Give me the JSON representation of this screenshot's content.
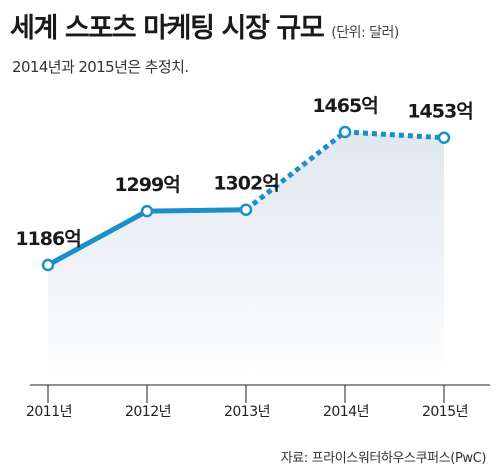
{
  "title": "세계 스포츠 마케팅 시장 규모",
  "unit": "(단위: 달러)",
  "subtitle": "2014년과 2015년은 추정치.",
  "source": "자료: 프라이스워터하우스쿠퍼스(PwC)",
  "colors": {
    "line": "#1b8fc7",
    "area_top": "#dfe7ef",
    "area_bottom": "#ffffff",
    "marker_fill": "#ffffff",
    "axis": "#222222"
  },
  "chart_data": {
    "type": "line",
    "title": "세계 스포츠 마케팅 시장 규모",
    "subtitle": "2014년과 2015년은 추정치.",
    "unit": "(단위: 달러)",
    "xlabel": "",
    "ylabel": "",
    "categories": [
      "2011년",
      "2012년",
      "2013년",
      "2014년",
      "2015년"
    ],
    "values": [
      1186,
      1299,
      1302,
      1465,
      1453
    ],
    "data_labels": [
      "1186억",
      "1299억",
      "1302억",
      "1465억",
      "1453억"
    ],
    "estimated": [
      false,
      false,
      false,
      true,
      true
    ],
    "ylim": [
      1100,
      1500
    ],
    "grid": false,
    "legend": "none",
    "source": "자료: 프라이스워터하우스쿠퍼스(PwC)"
  }
}
